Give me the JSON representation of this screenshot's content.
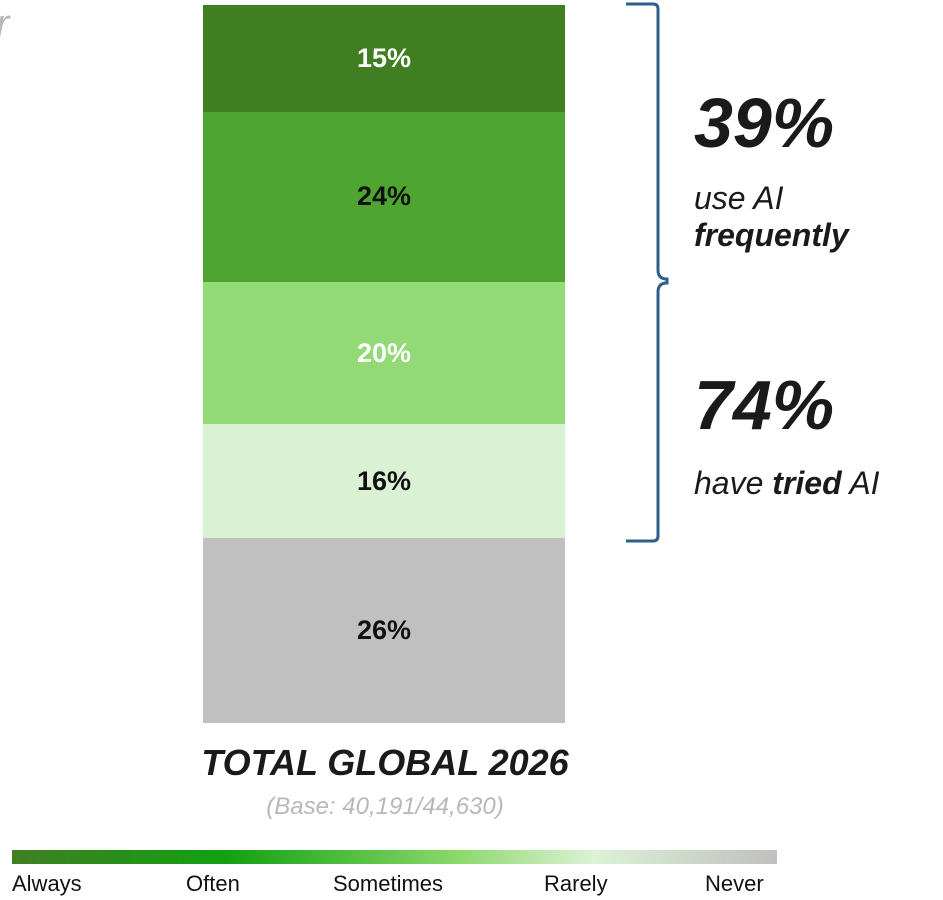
{
  "fragment_text": "r",
  "chart_data": {
    "type": "bar",
    "orientation": "stacked-vertical",
    "categories": [
      "TOTAL GLOBAL 2026"
    ],
    "series": [
      {
        "name": "Always",
        "values": [
          15
        ],
        "label": "15%",
        "color": "#3f7f22",
        "text_color": "#ffffff"
      },
      {
        "name": "Often",
        "values": [
          24
        ],
        "label": "24%",
        "color": "#4ea52f",
        "text_color": "#111111"
      },
      {
        "name": "Sometimes",
        "values": [
          20
        ],
        "label": "20%",
        "color": "#91da75",
        "text_color": "#ffffff"
      },
      {
        "name": "Rarely",
        "values": [
          16
        ],
        "label": "16%",
        "color": "#daf1d4",
        "text_color": "#111111"
      },
      {
        "name": "Never",
        "values": [
          26
        ],
        "label": "26%",
        "color": "#c0c0c0",
        "text_color": "#111111"
      }
    ],
    "title": "TOTAL GLOBAL 2026",
    "subtitle": "(Base: 40,191/44,630)",
    "annotations": [
      {
        "value": "39%",
        "line1": "use AI",
        "line2": "frequently",
        "covers": [
          "Always",
          "Often"
        ]
      },
      {
        "value": "74%",
        "line1_plain": "have ",
        "line1_bold": "tried",
        "line1_end": " AI",
        "covers": [
          "Always",
          "Often",
          "Sometimes",
          "Rarely"
        ]
      }
    ],
    "legend": {
      "position": "bottom",
      "labels": [
        "Always",
        "Often",
        "Sometimes",
        "Rarely",
        "Never"
      ],
      "gradient_colors": [
        "#3f7f22",
        "#12a012",
        "#8ad86a",
        "#dcf2d6",
        "#c0c0c0"
      ]
    },
    "brace_color": "#2e5f8a"
  }
}
